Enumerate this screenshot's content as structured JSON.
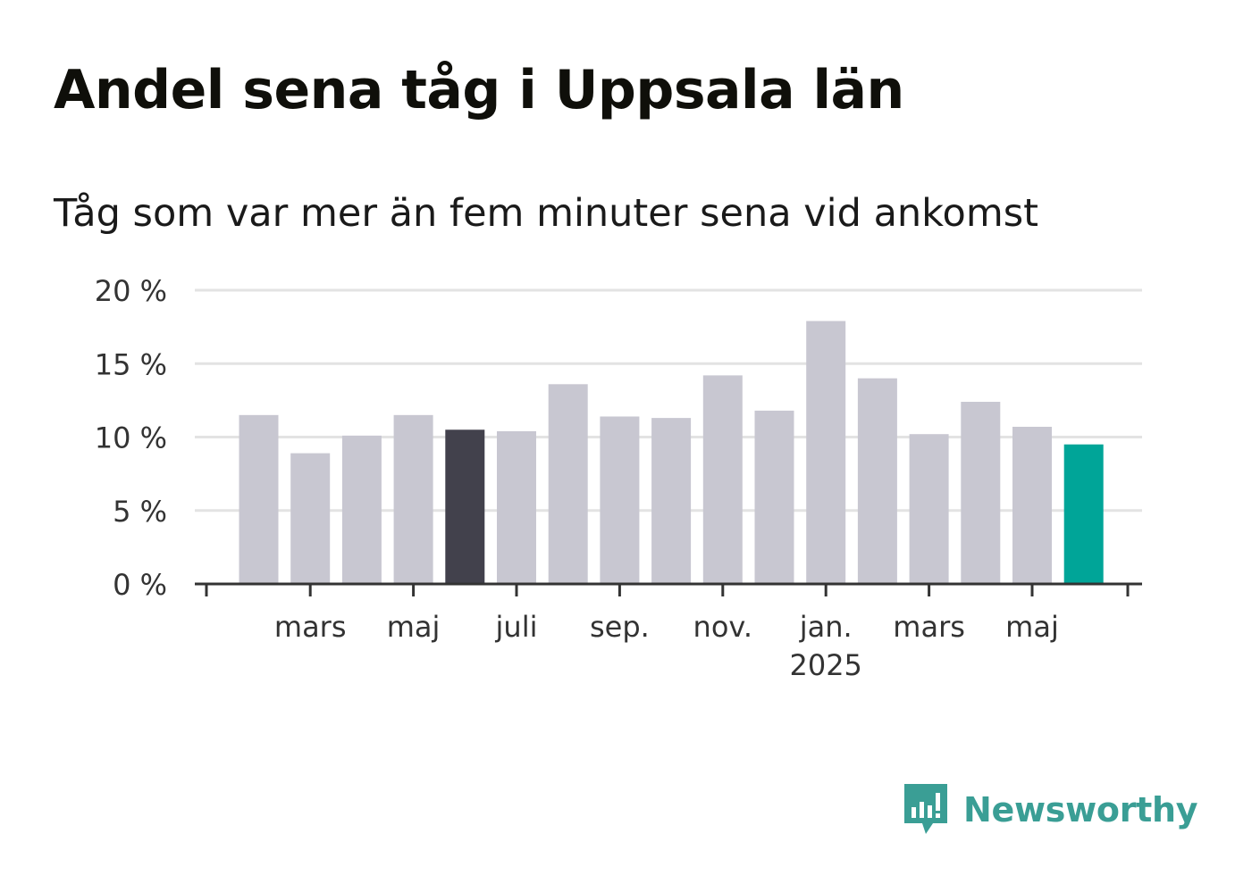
{
  "title": "Andel sena tåg i Uppsala län",
  "subtitle": "Tåg som var mer än fem minuter sena vid ankomst",
  "brand": "Newsworthy",
  "colors": {
    "bar_default": "#c8c7d1",
    "bar_highlight": "#42414c",
    "bar_latest": "#00a598",
    "grid": "#e3e3e3",
    "axis": "#333333",
    "brand": "#3a9e95"
  },
  "chart_data": {
    "type": "bar",
    "title": "Andel sena tåg i Uppsala län",
    "subtitle": "Tåg som var mer än fem minuter sena vid ankomst",
    "categories": [
      "2024-02",
      "2024-03",
      "2024-04",
      "2024-05",
      "2024-06",
      "2024-07",
      "2024-08",
      "2024-09",
      "2024-10",
      "2024-11",
      "2024-12",
      "2025-01",
      "2025-02",
      "2025-03",
      "2025-04",
      "2025-05",
      "2025-06"
    ],
    "values": [
      11.5,
      8.9,
      10.1,
      11.5,
      10.5,
      10.4,
      13.6,
      11.4,
      11.3,
      14.2,
      11.8,
      17.9,
      14.0,
      10.2,
      12.4,
      10.7,
      9.5
    ],
    "bar_styles": [
      "default",
      "default",
      "default",
      "default",
      "highlight",
      "default",
      "default",
      "default",
      "default",
      "default",
      "default",
      "default",
      "default",
      "default",
      "default",
      "default",
      "latest"
    ],
    "x_tick_labels": [
      {
        "category": "2024-03",
        "label": "mars",
        "sublabel": ""
      },
      {
        "category": "2024-05",
        "label": "maj",
        "sublabel": ""
      },
      {
        "category": "2024-07",
        "label": "juli",
        "sublabel": ""
      },
      {
        "category": "2024-09",
        "label": "sep.",
        "sublabel": ""
      },
      {
        "category": "2024-11",
        "label": "nov.",
        "sublabel": ""
      },
      {
        "category": "2025-01",
        "label": "jan.",
        "sublabel": "2025"
      },
      {
        "category": "2025-03",
        "label": "mars",
        "sublabel": ""
      },
      {
        "category": "2025-05",
        "label": "maj",
        "sublabel": ""
      }
    ],
    "y_ticks": [
      0,
      5,
      10,
      15,
      20
    ],
    "y_tick_labels": [
      "0 %",
      "5 %",
      "10 %",
      "15 %",
      "20 %"
    ],
    "ylim": [
      0,
      20
    ],
    "grid": true,
    "xlabel": "",
    "ylabel": ""
  }
}
